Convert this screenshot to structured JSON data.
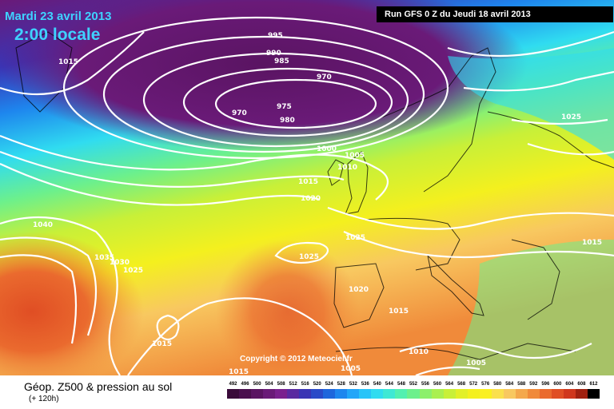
{
  "title_date": "Mardi 23 avril 2013",
  "title_time": "2:00 locale",
  "run_info": "Run GFS 0 Z du Jeudi 18 avril 2013",
  "copyright": "Copyright © 2012 Meteociel.fr",
  "legend": {
    "title": "Géop. Z500 & pression au sol",
    "subtitle": "(+ 120h)",
    "scale_values": [
      "492",
      "496",
      "500",
      "504",
      "508",
      "512",
      "516",
      "520",
      "524",
      "528",
      "532",
      "536",
      "540",
      "544",
      "548",
      "552",
      "556",
      "560",
      "564",
      "568",
      "572",
      "576",
      "580",
      "584",
      "588",
      "592",
      "596",
      "600",
      "604",
      "608",
      "612"
    ],
    "scale_colors": [
      "#3a0a3a",
      "#4a0f4e",
      "#5a1462",
      "#6a1a78",
      "#7a208e",
      "#5a2aa0",
      "#3a34b4",
      "#2a4ac8",
      "#1e66dc",
      "#1e86ee",
      "#22a6f8",
      "#28c4f8",
      "#30dcf0",
      "#3ee8d4",
      "#52f0b0",
      "#6cf08c",
      "#8cf06c",
      "#aaf050",
      "#c8f038",
      "#e2f028",
      "#f4f01e",
      "#faf022",
      "#fae04e",
      "#f8c860",
      "#f4a84c",
      "#f08a3a",
      "#ea6a2e",
      "#e04e24",
      "#d0361c",
      "#a02010",
      "#000000"
    ]
  },
  "isobar_labels": [
    "995",
    "990",
    "985",
    "970",
    "970",
    "975",
    "980",
    "1015",
    "1000",
    "1005",
    "1010",
    "1015",
    "1020",
    "1025",
    "1025",
    "1040",
    "1035",
    "1030",
    "1025",
    "1025",
    "1020",
    "1015",
    "1015",
    "1010",
    "1015",
    "1005",
    "1015",
    "1005"
  ]
}
